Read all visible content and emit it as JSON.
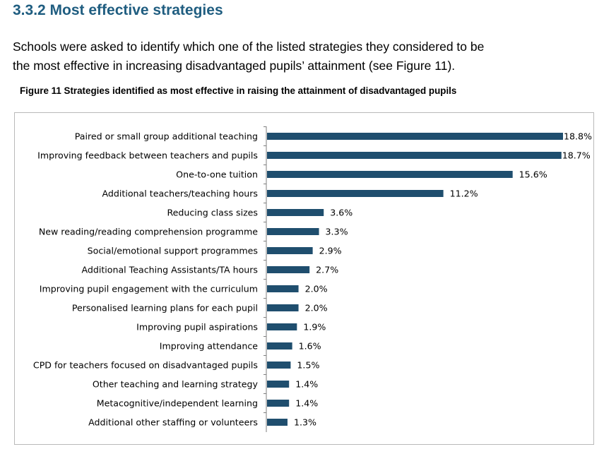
{
  "section": {
    "title": "3.3.2 Most effective strategies",
    "intro_line1": "Schools were asked to identify which one of the listed strategies they considered to be",
    "intro_line2": "the most effective in increasing disadvantaged pupils’ attainment (see Figure 11)."
  },
  "figure": {
    "caption": "Figure 11 Strategies identified as most effective in raising the attainment of disadvantaged pupils"
  },
  "chart_data": {
    "type": "bar",
    "orientation": "horizontal",
    "title": "",
    "xlabel": "",
    "ylabel": "",
    "grid": false,
    "legend": "none",
    "bar_color": "#1f4e6e",
    "categories": [
      "Paired or small group additional teaching",
      "Improving feedback between teachers and pupils",
      "One-to-one tuition",
      "Additional teachers/teaching hours",
      "Reducing class sizes",
      "New reading/reading comprehension programme",
      "Social/emotional support programmes",
      "Additional Teaching Assistants/TA hours",
      "Improving pupil engagement with the curriculum",
      "Personalised learning plans for each pupil",
      "Improving pupil aspirations",
      "Improving attendance",
      "CPD for teachers focused on disadvantaged pupils",
      "Other teaching and learning strategy",
      "Metacognitive/independent learning",
      "Additional other staffing or volunteers"
    ],
    "values": [
      18.8,
      18.7,
      15.6,
      11.2,
      3.6,
      3.3,
      2.9,
      2.7,
      2.0,
      2.0,
      1.9,
      1.6,
      1.5,
      1.4,
      1.4,
      1.3
    ],
    "value_labels": [
      "18.8%",
      "18.7%",
      "15.6%",
      "11.2%",
      "3.6%",
      "3.3%",
      "2.9%",
      "2.7%",
      "2.0%",
      "2.0%",
      "1.9%",
      "1.6%",
      "1.5%",
      "1.4%",
      "1.4%",
      "1.3%"
    ],
    "xlim": [
      0,
      18.8
    ]
  }
}
